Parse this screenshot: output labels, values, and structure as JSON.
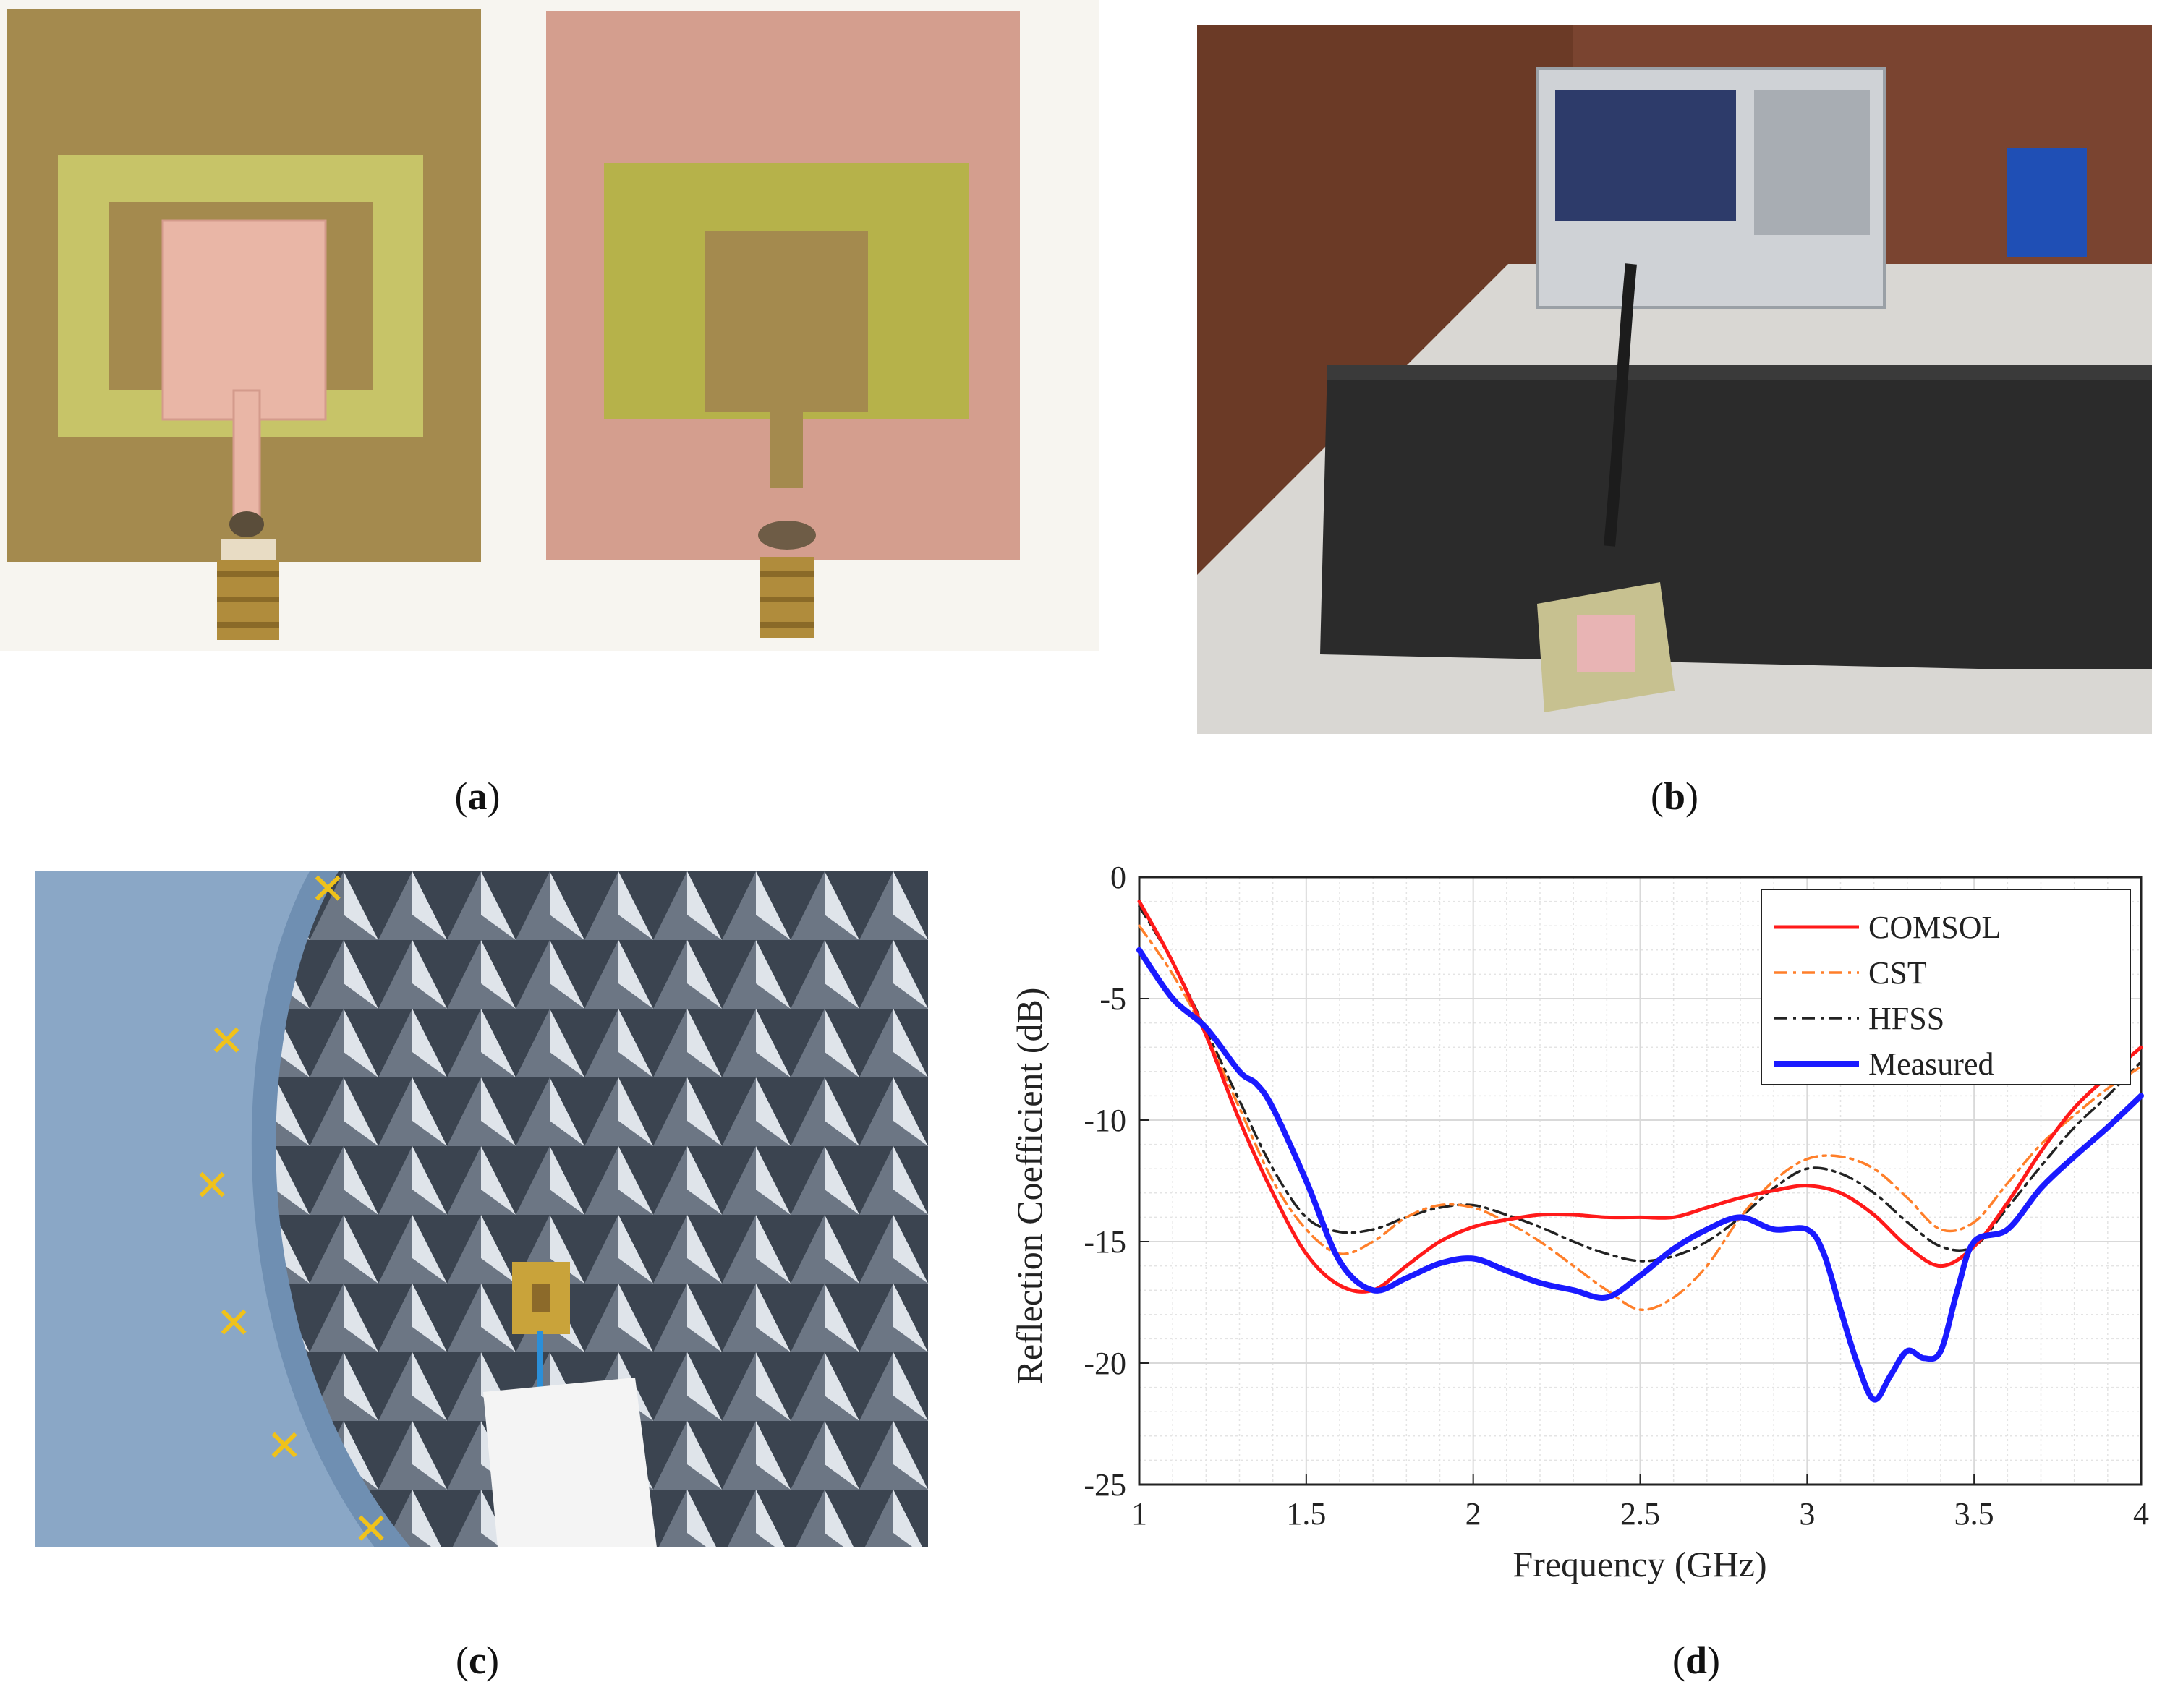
{
  "captions": {
    "a": "a",
    "b": "b",
    "c": "c",
    "d": "d"
  },
  "colors": {
    "comsol": "#ff1a1a",
    "cst": "#ff7f2a",
    "hfss": "#222222",
    "measured": "#1a1aff",
    "grid": "#d9d9d9"
  },
  "chart_data": {
    "type": "line",
    "title": "",
    "xlabel": "Frequency (GHz)",
    "ylabel": "Reflection Coefficient (dB)",
    "xlim": [
      1,
      4
    ],
    "ylim": [
      -25,
      0
    ],
    "xticks": [
      "1",
      "1.5",
      "2",
      "2.5",
      "3",
      "3.5",
      "4"
    ],
    "yticks": [
      "0",
      "-5",
      "-10",
      "-15",
      "-20",
      "-25"
    ],
    "grid": true,
    "legend_position": "top-right",
    "series": [
      {
        "name": "COMSOL",
        "style": "solid",
        "x": [
          1.0,
          1.1,
          1.2,
          1.3,
          1.4,
          1.5,
          1.6,
          1.7,
          1.8,
          1.9,
          2.0,
          2.1,
          2.2,
          2.3,
          2.4,
          2.5,
          2.6,
          2.7,
          2.8,
          2.9,
          3.0,
          3.1,
          3.2,
          3.3,
          3.4,
          3.5,
          3.6,
          3.7,
          3.8,
          3.9,
          4.0
        ],
        "values": [
          -1.0,
          -3.5,
          -6.5,
          -10.0,
          -13.0,
          -15.5,
          -16.8,
          -17.0,
          -16.0,
          -15.0,
          -14.4,
          -14.1,
          -13.9,
          -13.9,
          -14.0,
          -14.0,
          -14.0,
          -13.6,
          -13.2,
          -12.9,
          -12.7,
          -13.0,
          -13.9,
          -15.2,
          -16.0,
          -15.2,
          -13.4,
          -11.3,
          -9.5,
          -8.2,
          -7.0
        ]
      },
      {
        "name": "CST",
        "style": "dashdot",
        "x": [
          1.0,
          1.1,
          1.2,
          1.3,
          1.4,
          1.5,
          1.6,
          1.7,
          1.8,
          1.9,
          2.0,
          2.1,
          2.2,
          2.3,
          2.4,
          2.5,
          2.6,
          2.7,
          2.8,
          2.9,
          3.0,
          3.1,
          3.2,
          3.3,
          3.4,
          3.5,
          3.6,
          3.7,
          3.8,
          3.9,
          4.0
        ],
        "values": [
          -2.0,
          -4.0,
          -6.5,
          -9.5,
          -12.5,
          -14.5,
          -15.5,
          -15.0,
          -14.0,
          -13.5,
          -13.6,
          -14.2,
          -15.0,
          -16.0,
          -17.0,
          -17.8,
          -17.3,
          -16.0,
          -14.0,
          -12.5,
          -11.6,
          -11.5,
          -12.0,
          -13.2,
          -14.5,
          -14.2,
          -12.6,
          -11.0,
          -9.8,
          -8.7,
          -7.8
        ]
      },
      {
        "name": "HFSS",
        "style": "dashdot",
        "x": [
          1.0,
          1.1,
          1.2,
          1.3,
          1.4,
          1.5,
          1.6,
          1.7,
          1.8,
          1.9,
          2.0,
          2.1,
          2.2,
          2.3,
          2.4,
          2.5,
          2.6,
          2.7,
          2.8,
          2.9,
          3.0,
          3.1,
          3.2,
          3.3,
          3.4,
          3.5,
          3.6,
          3.7,
          3.8,
          3.9,
          4.0
        ],
        "values": [
          -1.2,
          -3.5,
          -6.3,
          -9.2,
          -12.0,
          -14.0,
          -14.6,
          -14.5,
          -14.0,
          -13.6,
          -13.5,
          -13.9,
          -14.4,
          -15.0,
          -15.5,
          -15.8,
          -15.6,
          -15.0,
          -14.0,
          -12.8,
          -12.0,
          -12.2,
          -13.0,
          -14.2,
          -15.2,
          -15.2,
          -13.6,
          -11.9,
          -10.3,
          -9.0,
          -7.6
        ]
      },
      {
        "name": "Measured",
        "style": "solid-thick",
        "x": [
          1.0,
          1.1,
          1.2,
          1.3,
          1.35,
          1.4,
          1.5,
          1.6,
          1.7,
          1.8,
          1.9,
          2.0,
          2.1,
          2.2,
          2.3,
          2.4,
          2.5,
          2.6,
          2.7,
          2.8,
          2.9,
          3.0,
          3.05,
          3.1,
          3.15,
          3.2,
          3.25,
          3.3,
          3.35,
          3.4,
          3.45,
          3.5,
          3.6,
          3.7,
          3.8,
          3.9,
          4.0
        ],
        "values": [
          -3.0,
          -5.0,
          -6.2,
          -8.0,
          -8.5,
          -9.5,
          -12.5,
          -15.8,
          -17.0,
          -16.5,
          -15.9,
          -15.7,
          -16.2,
          -16.7,
          -17.0,
          -17.3,
          -16.4,
          -15.3,
          -14.5,
          -14.0,
          -14.5,
          -14.5,
          -15.5,
          -17.8,
          -20.0,
          -21.5,
          -20.5,
          -19.5,
          -19.8,
          -19.5,
          -17.0,
          -15.0,
          -14.5,
          -12.8,
          -11.5,
          -10.3,
          -9.0
        ]
      }
    ]
  }
}
